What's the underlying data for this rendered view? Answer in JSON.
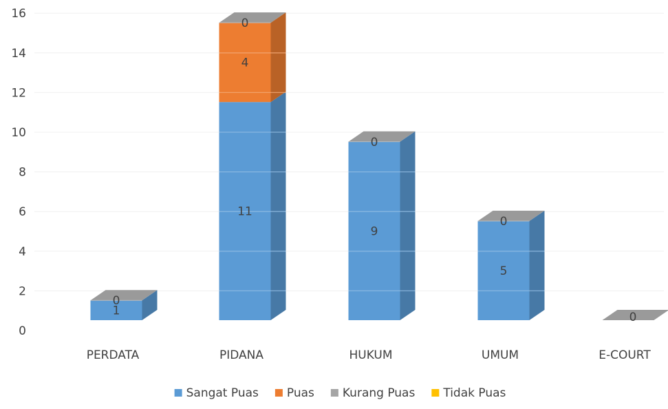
{
  "chart_data": {
    "type": "bar",
    "stacked": true,
    "three_d": true,
    "categories": [
      "PERDATA",
      "PIDANA",
      "HUKUM",
      "UMUM",
      "E-COURT"
    ],
    "series": [
      {
        "name": "Sangat Puas",
        "color": "#5b9bd5",
        "values": [
          1,
          11,
          9,
          5,
          0
        ]
      },
      {
        "name": "Puas",
        "color": "#ed7d31",
        "values": [
          0,
          4,
          0,
          0,
          0
        ]
      },
      {
        "name": "Kurang Puas",
        "color": "#a5a5a5",
        "values": [
          0,
          0,
          0,
          0,
          0
        ]
      },
      {
        "name": "Tidak Puas",
        "color": "#ffc000",
        "values": [
          0,
          0,
          0,
          0,
          0
        ]
      }
    ],
    "data_labels": [
      [
        "1",
        "0"
      ],
      [
        "11",
        "4",
        "0"
      ],
      [
        "9",
        "0"
      ],
      [
        "5",
        "0"
      ],
      [
        "0"
      ]
    ],
    "yticks": [
      "0",
      "2",
      "4",
      "6",
      "8",
      "10",
      "12",
      "14",
      "16"
    ],
    "ylim": [
      0,
      16
    ],
    "grid": true,
    "legend_position": "bottom"
  }
}
